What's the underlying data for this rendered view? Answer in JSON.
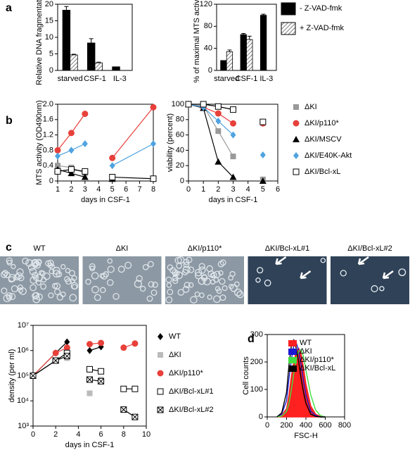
{
  "chart_data": [
    {
      "type": "bar",
      "panel": "a",
      "ylabel": "Relative DNA fragmentation",
      "categories": [
        "starved",
        "CSF-1",
        "IL-3"
      ],
      "ylim": [
        0,
        20
      ],
      "yticks": [
        0,
        5,
        10,
        15,
        20
      ],
      "series": [
        {
          "color": "#000000",
          "values": [
            18.2,
            8.3,
            1.1
          ],
          "errors": [
            1.1,
            1.3,
            null
          ]
        },
        {
          "color": "#ffffff",
          "pattern": "hatch",
          "values": [
            4.7,
            2.3,
            null
          ],
          "errors": [
            0.2,
            0.2,
            null
          ]
        }
      ]
    },
    {
      "type": "bar",
      "ylabel": "% of maximal MTS activity",
      "categories": [
        "starved",
        "CSF-1",
        "IL-3"
      ],
      "ylim": [
        0,
        120
      ],
      "yticks": [
        0,
        40,
        80,
        120
      ],
      "legend": "right",
      "series": [
        {
          "name": "- Z-VAD-fmk",
          "color": "#000000",
          "values": [
            18,
            65,
            100
          ],
          "errors": [
            null,
            2,
            2
          ]
        },
        {
          "name": "+ Z-VAD-fmk",
          "color": "#ffffff",
          "pattern": "hatch",
          "values": [
            34,
            56,
            null
          ],
          "errors": [
            3,
            6,
            null
          ]
        }
      ]
    },
    {
      "type": "line",
      "panel": "b",
      "ylabel": "MTS activity (OD490nm)",
      "xlabel": "days in CSF-1",
      "x": [
        1,
        2,
        3,
        4,
        5,
        8
      ],
      "xlim": [
        1,
        8
      ],
      "xticks": [
        1,
        2,
        3,
        4,
        5,
        6,
        7,
        8
      ],
      "ylim": [
        0,
        2
      ],
      "yticks": [
        0,
        0.4,
        0.8,
        1.2,
        1.6,
        {
          "value": 2,
          "label": "2.0"
        }
      ],
      "series": [
        {
          "color": "#999999",
          "marker": "square",
          "values": [
            0.4,
            0.35,
            0.2,
            null,
            0.1,
            null
          ]
        },
        {
          "color": "#e8403a",
          "marker": "circle",
          "values": [
            0.8,
            1.25,
            1.75,
            null,
            0.6,
            1.92
          ]
        },
        {
          "color": "#000000",
          "marker": "triangle",
          "values": [
            0.3,
            0.2,
            0.1,
            null,
            0.05,
            null
          ]
        },
        {
          "color": "#4fa3e0",
          "marker": "diamond",
          "values": [
            0.65,
            0.8,
            0.97,
            null,
            0.4,
            0.97
          ]
        },
        {
          "color": "#000000",
          "marker": "open-square",
          "values": [
            0.25,
            0.3,
            0.25,
            null,
            0.1,
            0.06
          ]
        }
      ]
    },
    {
      "type": "line",
      "ylabel": "viability (percent)",
      "xlabel": "days in CSF-1",
      "x": [
        0,
        1,
        2,
        3,
        4,
        5
      ],
      "xlim": [
        0,
        6
      ],
      "xticks": [
        0,
        1,
        2,
        3,
        4,
        5,
        6
      ],
      "ylim": [
        0,
        100
      ],
      "yticks": [
        0,
        20,
        40,
        60,
        80,
        100
      ],
      "legend": "right",
      "series": [
        {
          "name": "ΔKI",
          "color": "#999999",
          "marker": "square",
          "values": [
            100,
            98,
            65,
            32,
            null,
            2
          ]
        },
        {
          "name": "ΔKI/p110*",
          "color": "#e8403a",
          "marker": "circle",
          "values": [
            100,
            96,
            88,
            75,
            null,
            75
          ]
        },
        {
          "name": "ΔKI/MSCV",
          "color": "#000000",
          "marker": "triangle",
          "values": [
            100,
            95,
            25,
            5,
            null,
            0
          ]
        },
        {
          "name": "ΔKI/E40K-Akt",
          "color": "#4fa3e0",
          "marker": "diamond",
          "values": [
            100,
            96,
            78,
            60,
            null,
            34
          ]
        },
        {
          "name": "ΔKI/Bcl-xL",
          "color": "#000000",
          "marker": "open-square",
          "values": [
            100,
            100,
            97,
            93,
            null,
            77
          ]
        }
      ]
    },
    {
      "type": "line",
      "log_y": true,
      "ylabel": "density (per ml)",
      "xlabel": "days in CSF-1",
      "x": [
        0,
        2,
        3,
        4,
        5,
        6,
        7,
        8,
        9
      ],
      "xlim": [
        0,
        10
      ],
      "xticks": [
        0,
        2,
        4,
        6,
        8,
        10
      ],
      "ylim": [
        1000,
        10000000
      ],
      "yticks": [
        {
          "value": 1000,
          "label": "10³"
        },
        {
          "value": 10000,
          "label": "10⁴"
        },
        {
          "value": 100000,
          "label": "10⁵"
        },
        {
          "value": 1000000,
          "label": "10⁶"
        },
        {
          "value": 10000000,
          "label": "10⁷"
        }
      ],
      "legend": "right",
      "series": [
        {
          "name": "WT",
          "color": "#000000",
          "marker": "diamond",
          "values": [
            100000,
            800000,
            2200000,
            null,
            1000000,
            1400000,
            null,
            null,
            null
          ]
        },
        {
          "name": "ΔKI",
          "color": "#bbbbbb",
          "marker": "square",
          "line": false,
          "values": [
            100000,
            400000,
            500000,
            null,
            20000,
            70000,
            null,
            null,
            null
          ]
        },
        {
          "name": "ΔKI/p110*",
          "color": "#e8403a",
          "marker": "circle",
          "values": [
            100000,
            800000,
            1300000,
            null,
            1800000,
            2000000,
            null,
            1300000,
            1900000
          ]
        },
        {
          "name": "ΔKI/Bcl-xL#1",
          "color": "#000000",
          "marker": "open-square",
          "values": [
            100000,
            400000,
            800000,
            null,
            180000,
            150000,
            null,
            30000,
            30000
          ]
        },
        {
          "name": "ΔKI/Bcl-xL#2",
          "color": "#000000",
          "marker": "crossed-square",
          "values": [
            100000,
            400000,
            600000,
            null,
            70000,
            60000,
            null,
            4500,
            2300
          ]
        }
      ]
    },
    {
      "type": "line",
      "panel": "d",
      "ylabel": "Cell counts",
      "xlabel": "FSC-H",
      "x": [
        100,
        150,
        200,
        225,
        250,
        275,
        300,
        325,
        350,
        375,
        400,
        450,
        500,
        550,
        600
      ],
      "xlim": [
        0,
        800
      ],
      "xticks": [
        0,
        200,
        400,
        600,
        800
      ],
      "ylim": [
        0,
        300
      ],
      "yticks": [
        0,
        100,
        200,
        300
      ],
      "legend": "upper right",
      "series": [
        {
          "name": "WT",
          "color": "#ff2020",
          "fill": true,
          "values": [
            0,
            5,
            30,
            80,
            150,
            200,
            240,
            250,
            230,
            180,
            120,
            40,
            10,
            2,
            0
          ]
        },
        {
          "name": "ΔKI",
          "color": "#1a1ad0",
          "values": [
            0,
            10,
            60,
            140,
            210,
            260,
            270,
            240,
            190,
            130,
            80,
            20,
            5,
            0,
            0
          ]
        },
        {
          "name": "ΔKI/p110*",
          "color": "#40e040",
          "values": [
            0,
            3,
            20,
            50,
            100,
            160,
            210,
            240,
            245,
            220,
            170,
            80,
            25,
            5,
            0
          ]
        },
        {
          "name": "ΔKI/Bcl-xL",
          "color": "#000000",
          "values": [
            0,
            15,
            90,
            190,
            260,
            280,
            250,
            200,
            140,
            90,
            50,
            10,
            2,
            0,
            0
          ]
        }
      ]
    }
  ],
  "micrographs": {
    "panel": "c",
    "labels": [
      "WT",
      "ΔKI",
      "ΔKI/p110*",
      "ΔKI/Bcl-xL#1",
      "ΔKI/Bcl-xL#2"
    ]
  }
}
